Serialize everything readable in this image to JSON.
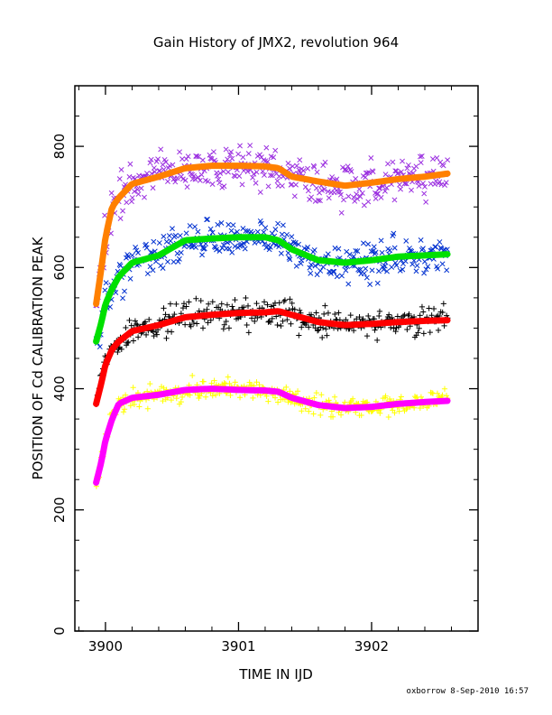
{
  "chart_data": {
    "type": "scatter",
    "title": "Gain History of JMX2, revolution 964",
    "xlabel": "TIME IN IJD",
    "ylabel": "POSITION OF Cd CALIBRATION PEAK",
    "xlim": [
      3899.77,
      3902.8
    ],
    "ylim": [
      0,
      900
    ],
    "x_ticks": [
      3900,
      3901,
      3902
    ],
    "y_ticks": [
      0,
      200,
      400,
      600,
      800
    ],
    "grid": false,
    "series": [
      {
        "marker": "x",
        "color": "#9b30e0",
        "scatter": 28,
        "fit": {
          "color": "#ff8000",
          "x": [
            3899.93,
            3899.97,
            3900.0,
            3900.05,
            3900.1,
            3900.2,
            3900.4,
            3900.6,
            3900.8,
            3901.0,
            3901.2,
            3901.3,
            3901.4,
            3901.6,
            3901.8,
            3902.0,
            3902.2,
            3902.4,
            3902.57
          ],
          "y": [
            540,
            600,
            650,
            700,
            715,
            738,
            750,
            764,
            768,
            768,
            767,
            764,
            750,
            742,
            735,
            740,
            746,
            750,
            755
          ]
        }
      },
      {
        "marker": "x",
        "color": "#0030d0",
        "scatter": 22,
        "fit": {
          "color": "#00e000",
          "x": [
            3899.93,
            3899.97,
            3900.0,
            3900.05,
            3900.1,
            3900.2,
            3900.4,
            3900.6,
            3900.8,
            3901.0,
            3901.2,
            3901.3,
            3901.4,
            3901.6,
            3901.8,
            3902.0,
            3902.2,
            3902.4,
            3902.57
          ],
          "y": [
            478,
            510,
            540,
            565,
            585,
            608,
            620,
            645,
            648,
            650,
            650,
            645,
            630,
            612,
            608,
            612,
            618,
            620,
            622
          ]
        }
      },
      {
        "marker": "+",
        "color": "#000000",
        "scatter": 16,
        "fit": {
          "color": "#ff0000",
          "x": [
            3899.93,
            3899.97,
            3900.0,
            3900.05,
            3900.1,
            3900.2,
            3900.4,
            3900.6,
            3900.8,
            3901.0,
            3901.2,
            3901.3,
            3901.4,
            3901.6,
            3901.8,
            3902.0,
            3902.2,
            3902.4,
            3902.57
          ],
          "y": [
            375,
            410,
            440,
            465,
            478,
            495,
            505,
            518,
            522,
            525,
            526,
            528,
            522,
            510,
            505,
            507,
            510,
            512,
            513
          ]
        }
      },
      {
        "marker": "+",
        "color": "#ffff00",
        "scatter": 12,
        "fit": {
          "color": "#ff00ff",
          "x": [
            3899.93,
            3899.97,
            3900.0,
            3900.05,
            3900.1,
            3900.2,
            3900.4,
            3900.6,
            3900.8,
            3901.0,
            3901.2,
            3901.3,
            3901.4,
            3901.6,
            3901.8,
            3902.0,
            3902.2,
            3902.4,
            3902.57
          ],
          "y": [
            245,
            280,
            315,
            350,
            375,
            385,
            390,
            398,
            400,
            398,
            397,
            395,
            385,
            373,
            368,
            370,
            375,
            378,
            380
          ]
        }
      }
    ]
  },
  "footer": "oxborrow 8-Sep-2010 16:57"
}
